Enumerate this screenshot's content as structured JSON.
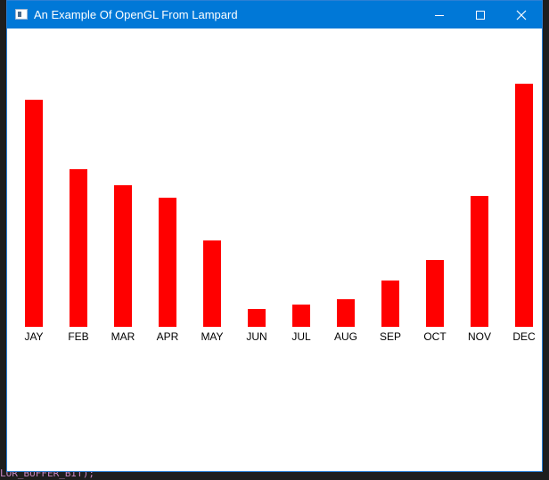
{
  "window": {
    "title": "An Example Of OpenGL From Lampard",
    "controls": {
      "minimize_icon": "minimize-icon",
      "maximize_icon": "maximize-icon",
      "close_icon": "close-icon"
    }
  },
  "background": {
    "code_fragment": "LOR_BUFFER_BIT);"
  },
  "colors": {
    "titlebar": "#0078d7",
    "bar": "#ff0000",
    "label": "#000000",
    "background": "#ffffff"
  },
  "chart_data": {
    "type": "bar",
    "categories": [
      "JAY",
      "FEB",
      "MAR",
      "APR",
      "MAY",
      "JUN",
      "JUL",
      "AUG",
      "SEP",
      "OCT",
      "NOV",
      "DEC"
    ],
    "values": [
      255,
      177,
      159,
      145,
      97,
      20,
      25,
      31,
      52,
      75,
      147,
      273
    ],
    "title": "",
    "xlabel": "",
    "ylabel": "",
    "ylim": [
      0,
      335
    ],
    "grid": false,
    "legend": "none"
  }
}
